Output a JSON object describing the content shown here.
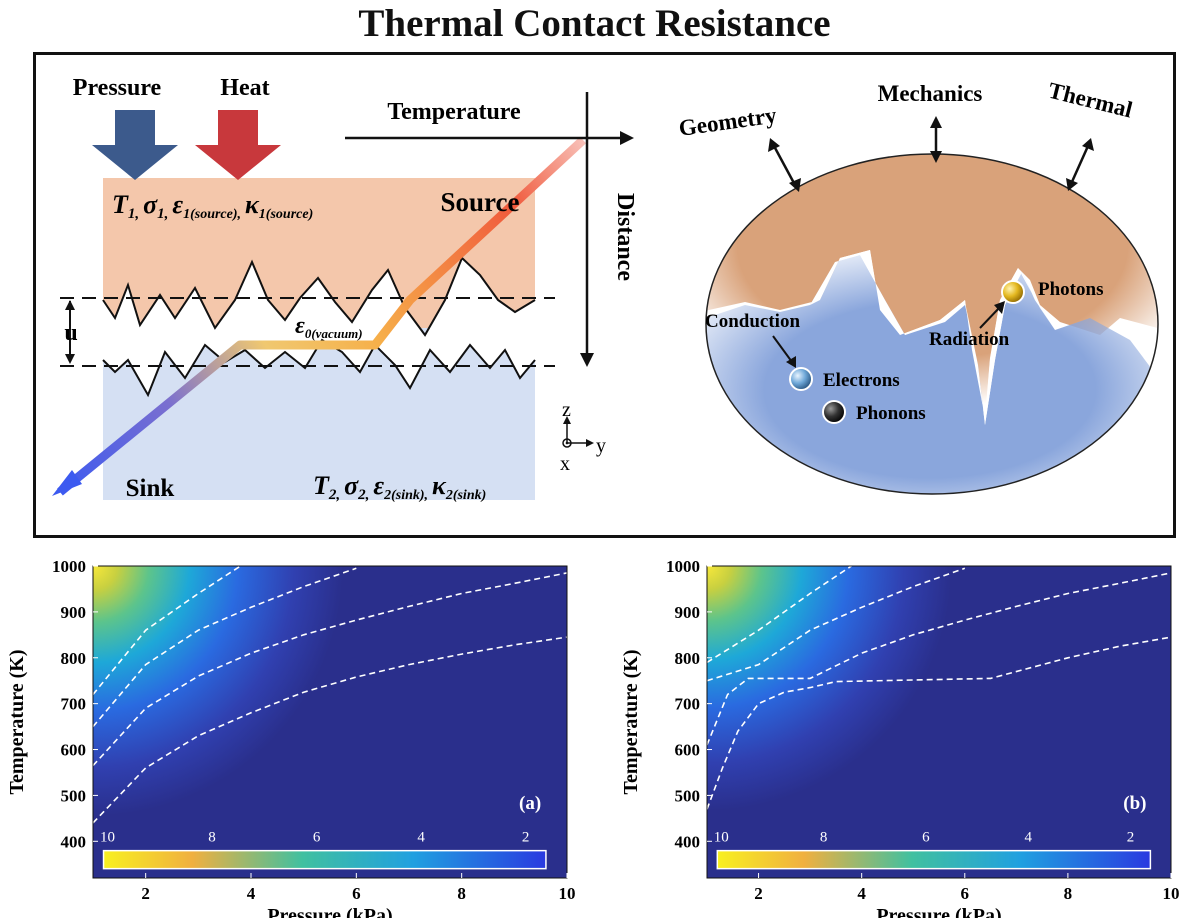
{
  "figure": {
    "title": "Thermal Contact Resistance",
    "left_panel": {
      "pressure_label": "Pressure",
      "heat_label": "Heat",
      "temperature_label": "Temperature",
      "distance_label": "Distance",
      "source_label": "Source",
      "sink_label": "Sink",
      "gap_label": "u",
      "source_props": {
        "T": "T",
        "T_sub": "1,",
        "sigma": "σ",
        "sigma_sub": "1,",
        "eps": "ε",
        "eps_sub": "1(source),",
        "kappa": "κ",
        "kappa_sub": "1(source)"
      },
      "sink_props": {
        "T": "T",
        "T_sub": "2,",
        "sigma": "σ",
        "sigma_sub": "2,",
        "eps": "ε",
        "eps_sub": "2(sink),",
        "kappa": "κ",
        "kappa_sub": "2(sink)"
      },
      "vacuum_props": {
        "eps": "ε",
        "eps_sub": "0(vacuum)"
      },
      "axes": {
        "z": "z",
        "y": "y",
        "x": "x"
      },
      "colors": {
        "source": "#f4c7ab",
        "sink": "#d5e0f3",
        "pressure_arrow": "#3c5a8c",
        "heat_arrow": "#c8383c",
        "temp_hot": "#f05a3c",
        "temp_mid": "#f6b04a",
        "temp_cold": "#3c5af0"
      }
    },
    "right_panel": {
      "geometry_label": "Geometry",
      "mechanics_label": "Mechanics",
      "thermal_label": "Thermal",
      "conduction_label": "Conduction",
      "radiation_label": "Radiation",
      "photons_label": "Photons",
      "electrons_label": "Electrons",
      "phonons_label": "Phonons",
      "icons": {
        "photon": "photon-sphere-icon",
        "electron": "electron-sphere-icon",
        "phonon": "phonon-sphere-icon"
      },
      "colors": {
        "upper": "#d9a27a",
        "lower": "#8aa6dc",
        "photon": "#e4b820",
        "electron": "#6fa8d8",
        "phonon": "#333333"
      }
    }
  },
  "chart_data": [
    {
      "type": "heatmap",
      "panel_label": "(a)",
      "xlabel": "Pressure (kPa)",
      "ylabel": "Temperature (K)",
      "xlim": [
        1,
        10
      ],
      "ylim": [
        320,
        1000
      ],
      "xticks": [
        "2",
        "4",
        "6",
        "8",
        "10"
      ],
      "yticks": [
        "400",
        "500",
        "600",
        "700",
        "800",
        "900",
        "1000"
      ],
      "colorbar": {
        "labels": [
          "10",
          "8",
          "6",
          "4",
          "2"
        ],
        "range": [
          1,
          10
        ],
        "placement": "bottom-inside"
      },
      "contours": [
        {
          "points": [
            [
              1.0,
              440
            ],
            [
              2.0,
              560
            ],
            [
              3.0,
              630
            ],
            [
              4.0,
              680
            ],
            [
              5.0,
              725
            ],
            [
              6.0,
              758
            ],
            [
              7.0,
              785
            ],
            [
              8.0,
              808
            ],
            [
              9.0,
              828
            ],
            [
              10.0,
              845
            ]
          ]
        },
        {
          "points": [
            [
              1.0,
              565
            ],
            [
              2.0,
              690
            ],
            [
              3.0,
              760
            ],
            [
              4.0,
              810
            ],
            [
              5.0,
              850
            ],
            [
              6.0,
              882
            ],
            [
              7.0,
              912
            ],
            [
              8.0,
              940
            ],
            [
              9.0,
              962
            ],
            [
              10.0,
              985
            ]
          ]
        },
        {
          "points": [
            [
              1.0,
              650
            ],
            [
              2.0,
              785
            ],
            [
              3.0,
              860
            ],
            [
              4.0,
              910
            ],
            [
              5.0,
              955
            ],
            [
              6.0,
              995
            ]
          ]
        },
        {
          "points": [
            [
              1.0,
              720
            ],
            [
              2.0,
              860
            ],
            [
              3.0,
              940
            ],
            [
              3.8,
              1000
            ]
          ]
        }
      ],
      "annotation": "(a)"
    },
    {
      "type": "heatmap",
      "panel_label": "(b)",
      "xlabel": "Pressure (kPa)",
      "ylabel": "Temperature (K)",
      "xlim": [
        1,
        10
      ],
      "ylim": [
        320,
        1000
      ],
      "xticks": [
        "2",
        "4",
        "6",
        "8",
        "10"
      ],
      "yticks": [
        "400",
        "500",
        "600",
        "700",
        "800",
        "900",
        "1000"
      ],
      "colorbar": {
        "labels": [
          "10",
          "8",
          "6",
          "4",
          "2"
        ],
        "range": [
          1,
          10
        ],
        "placement": "bottom-inside"
      },
      "contours": [
        {
          "points": [
            [
              1.0,
              470
            ],
            [
              1.3,
              560
            ],
            [
              1.6,
              640
            ],
            [
              2.0,
              700
            ],
            [
              2.5,
              725
            ],
            [
              3.0,
              735
            ],
            [
              3.5,
              748
            ],
            [
              6.5,
              755
            ],
            [
              8.0,
              800
            ],
            [
              9.0,
              825
            ],
            [
              10.0,
              845
            ]
          ]
        },
        {
          "points": [
            [
              1.0,
              610
            ],
            [
              1.4,
              720
            ],
            [
              1.8,
              755
            ],
            [
              3.0,
              755
            ],
            [
              4.0,
              810
            ],
            [
              5.0,
              850
            ],
            [
              6.0,
              882
            ],
            [
              7.0,
              912
            ],
            [
              8.0,
              940
            ],
            [
              9.0,
              962
            ],
            [
              10.0,
              985
            ]
          ]
        },
        {
          "points": [
            [
              1.0,
              750
            ],
            [
              2.0,
              785
            ],
            [
              3.0,
              860
            ],
            [
              4.0,
              910
            ],
            [
              5.0,
              955
            ],
            [
              6.0,
              995
            ]
          ]
        },
        {
          "points": [
            [
              1.0,
              790
            ],
            [
              2.0,
              860
            ],
            [
              3.0,
              940
            ],
            [
              3.8,
              1000
            ]
          ]
        }
      ],
      "annotation": "(b)"
    }
  ]
}
